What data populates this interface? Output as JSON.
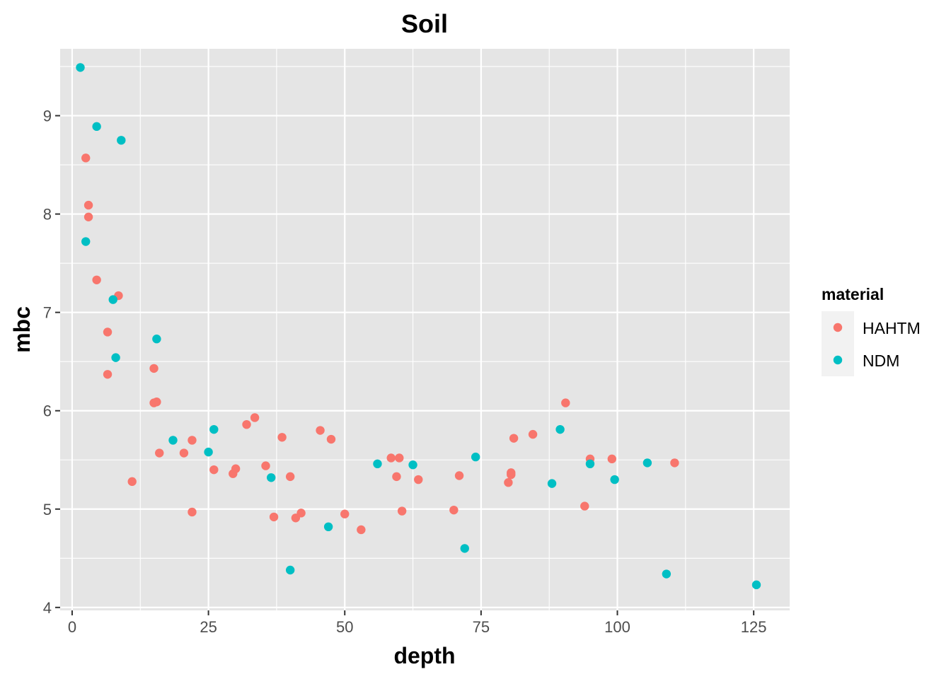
{
  "chart_data": {
    "type": "scatter",
    "title": "Soil",
    "xlabel": "depth",
    "ylabel": "mbc",
    "xlim": [
      -2.2,
      131.6
    ],
    "ylim": [
      3.97,
      9.68
    ],
    "x_ticks": [
      0,
      25,
      50,
      75,
      100,
      125
    ],
    "y_ticks": [
      4,
      5,
      6,
      7,
      8,
      9
    ],
    "grid": true,
    "legend": {
      "title": "material",
      "placement": "right"
    },
    "colors": {
      "panel_bg": "#e5e5e5",
      "grid": "#ffffff"
    },
    "series": [
      {
        "name": "HAHTM",
        "color": "#f8766d",
        "points": [
          [
            2.5,
            8.57
          ],
          [
            3,
            8.09
          ],
          [
            3,
            7.97
          ],
          [
            4.5,
            7.33
          ],
          [
            8.5,
            7.17
          ],
          [
            6.5,
            6.8
          ],
          [
            6.5,
            6.37
          ],
          [
            15,
            6.43
          ],
          [
            15,
            6.08
          ],
          [
            15.5,
            6.09
          ],
          [
            16,
            5.57
          ],
          [
            11,
            5.28
          ],
          [
            20.5,
            5.57
          ],
          [
            22,
            5.7
          ],
          [
            22,
            4.97
          ],
          [
            26,
            5.4
          ],
          [
            29.5,
            5.36
          ],
          [
            30,
            5.41
          ],
          [
            32,
            5.86
          ],
          [
            33.5,
            5.93
          ],
          [
            35.5,
            5.44
          ],
          [
            37,
            4.92
          ],
          [
            38.5,
            5.73
          ],
          [
            40,
            5.33
          ],
          [
            41,
            4.91
          ],
          [
            42,
            4.96
          ],
          [
            45.5,
            5.8
          ],
          [
            47.5,
            5.71
          ],
          [
            50,
            4.95
          ],
          [
            53,
            4.79
          ],
          [
            58.5,
            5.52
          ],
          [
            59.5,
            5.33
          ],
          [
            60,
            5.52
          ],
          [
            60.5,
            4.98
          ],
          [
            63.5,
            5.3
          ],
          [
            70,
            4.99
          ],
          [
            71,
            5.34
          ],
          [
            80,
            5.27
          ],
          [
            80.5,
            5.35
          ],
          [
            80.5,
            5.37
          ],
          [
            81,
            5.72
          ],
          [
            84.5,
            5.76
          ],
          [
            90.5,
            6.08
          ],
          [
            94,
            5.03
          ],
          [
            95,
            5.51
          ],
          [
            99,
            5.51
          ],
          [
            110.5,
            5.47
          ]
        ]
      },
      {
        "name": "NDM",
        "color": "#00bfc4",
        "points": [
          [
            1.5,
            9.49
          ],
          [
            4.5,
            8.89
          ],
          [
            9,
            8.75
          ],
          [
            2.5,
            7.72
          ],
          [
            7.5,
            7.13
          ],
          [
            8,
            6.54
          ],
          [
            15.5,
            6.73
          ],
          [
            18.5,
            5.7
          ],
          [
            25,
            5.58
          ],
          [
            26,
            5.81
          ],
          [
            36.5,
            5.32
          ],
          [
            40,
            4.38
          ],
          [
            47,
            4.82
          ],
          [
            56,
            5.46
          ],
          [
            62.5,
            5.45
          ],
          [
            72,
            4.6
          ],
          [
            74,
            5.53
          ],
          [
            88,
            5.26
          ],
          [
            89.5,
            5.81
          ],
          [
            95,
            5.46
          ],
          [
            99.5,
            5.3
          ],
          [
            105.5,
            5.47
          ],
          [
            109,
            4.34
          ],
          [
            125.5,
            4.23
          ]
        ]
      }
    ]
  }
}
